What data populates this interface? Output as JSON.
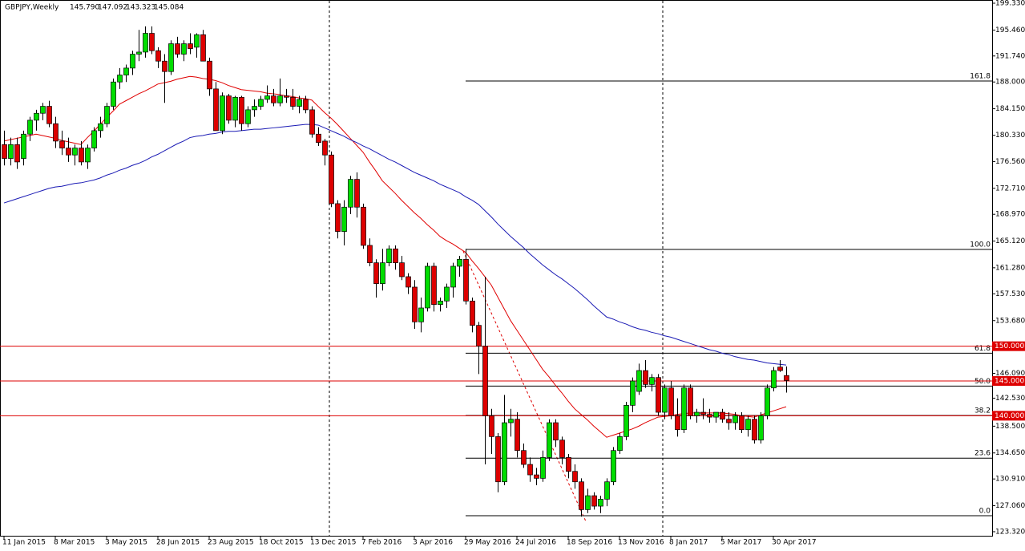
{
  "chart_data": {
    "type": "candlestick",
    "title": "GBPJPY,Weekly",
    "header_values": [
      "145.790",
      "147.092",
      "143.323",
      "145.084"
    ],
    "categories": [
      "11 Jan 2015",
      null,
      null,
      null,
      null,
      null,
      null,
      null,
      "8 Mar 2015",
      null,
      null,
      null,
      null,
      null,
      null,
      null,
      "3 May 2015",
      null,
      null,
      null,
      null,
      null,
      null,
      null,
      "28 Jun 2015",
      null,
      null,
      null,
      null,
      null,
      null,
      null,
      "23 Aug 2015",
      null,
      null,
      null,
      null,
      null,
      null,
      null,
      "18 Oct 2015",
      null,
      null,
      null,
      null,
      null,
      null,
      null,
      "13 Dec 2015",
      null,
      null,
      null,
      null,
      null,
      null,
      null,
      "7 Feb 2016",
      null,
      null,
      null,
      null,
      null,
      null,
      null,
      "3 Apr 2016",
      null,
      null,
      null,
      null,
      null,
      null,
      null,
      "29 May 2016",
      null,
      null,
      null,
      null,
      null,
      null,
      null,
      "24 Jul 2016",
      null,
      null,
      null,
      null,
      null,
      null,
      null,
      "18 Sep 2016",
      null,
      null,
      null,
      null,
      null,
      null,
      null,
      "13 Nov 2016",
      null,
      null,
      null,
      null,
      null,
      null,
      null,
      "8 Jan 2017",
      null,
      null,
      null,
      null,
      null,
      null,
      null,
      "5 Mar 2017",
      null,
      null,
      null,
      null,
      null,
      null,
      null,
      "30 Apr 2017",
      null,
      null
    ],
    "candles": {
      "up_color": "#00dd00",
      "down_color": "#dd0000",
      "values": [
        [
          179,
          181,
          176,
          177
        ],
        [
          177,
          180,
          176,
          179
        ],
        [
          179,
          180,
          175.5,
          176.5
        ],
        [
          177,
          181,
          176,
          180.5
        ],
        [
          180.5,
          183,
          179.5,
          182.5
        ],
        [
          182.5,
          184,
          181,
          183.5
        ],
        [
          183.5,
          185,
          182.5,
          184.5
        ],
        [
          184.5,
          185.3,
          181.5,
          182
        ],
        [
          182,
          183,
          178.5,
          179.5
        ],
        [
          179.5,
          181,
          177.5,
          178.5
        ],
        [
          178.5,
          180,
          176.5,
          177.5
        ],
        [
          177.5,
          179,
          176,
          178.5
        ],
        [
          178.5,
          179.5,
          176,
          176.5
        ],
        [
          176.5,
          179,
          175.5,
          178.5
        ],
        [
          178.5,
          181.5,
          178,
          181
        ],
        [
          181,
          183,
          180,
          182
        ],
        [
          182,
          185,
          181.5,
          184.5
        ],
        [
          184.5,
          188.5,
          184,
          188
        ],
        [
          188,
          190,
          187,
          189
        ],
        [
          189,
          190.5,
          188,
          190
        ],
        [
          190,
          192.5,
          189,
          192
        ],
        [
          192,
          195.5,
          191,
          192.3
        ],
        [
          192.3,
          196,
          191.5,
          195
        ],
        [
          195,
          196,
          192,
          192.5
        ],
        [
          192.5,
          193,
          190,
          191
        ],
        [
          191,
          192,
          185,
          189.5
        ],
        [
          189.5,
          194,
          189,
          193.5
        ],
        [
          193.5,
          194.5,
          191.5,
          192
        ],
        [
          192,
          194,
          191,
          193.5
        ],
        [
          193.5,
          195,
          192,
          192.8
        ],
        [
          193,
          195,
          191.5,
          194.8
        ],
        [
          194.8,
          195.5,
          191,
          191
        ],
        [
          191,
          191.5,
          186,
          187
        ],
        [
          187,
          188,
          181,
          181
        ],
        [
          181,
          186.5,
          180.5,
          186
        ],
        [
          186,
          186.3,
          182,
          182.5
        ],
        [
          182.5,
          186,
          181.5,
          185.8
        ],
        [
          185.8,
          186,
          181,
          182
        ],
        [
          182,
          184.5,
          181.5,
          184
        ],
        [
          184,
          185.5,
          183,
          184.5
        ],
        [
          184.5,
          186,
          184,
          185.5
        ],
        [
          185.5,
          187.5,
          185,
          186
        ],
        [
          186,
          187,
          184.5,
          185
        ],
        [
          185,
          188.5,
          184.5,
          186
        ],
        [
          186,
          187,
          185,
          185.8
        ],
        [
          185.8,
          187,
          184,
          184.5
        ],
        [
          184.5,
          186,
          183.5,
          185.5
        ],
        [
          185.5,
          186,
          183.5,
          184
        ],
        [
          184,
          184.5,
          180,
          180.5
        ],
        [
          180.5,
          181.5,
          178.8,
          179.3
        ],
        [
          179.5,
          179.8,
          176,
          177.5
        ],
        [
          177.5,
          178,
          170,
          170.5
        ],
        [
          170.5,
          171,
          165.5,
          166.5
        ],
        [
          166.5,
          171,
          164.5,
          170
        ],
        [
          170,
          174.5,
          169,
          174
        ],
        [
          174,
          175,
          168.5,
          170
        ],
        [
          170,
          170.5,
          164,
          164.5
        ],
        [
          164.5,
          165.5,
          161.5,
          162
        ],
        [
          162,
          162.5,
          157,
          159
        ],
        [
          159,
          164,
          158,
          162
        ],
        [
          162,
          164.5,
          161.5,
          164
        ],
        [
          164,
          164.5,
          161,
          162
        ],
        [
          162,
          163,
          159.5,
          160
        ],
        [
          160,
          160.5,
          157.5,
          158.5
        ],
        [
          158.5,
          159.5,
          152.5,
          153.5
        ],
        [
          153.5,
          157,
          152,
          155.5
        ],
        [
          155.5,
          162,
          155,
          161.5
        ],
        [
          161.5,
          162,
          155,
          156
        ],
        [
          156,
          157,
          155,
          156.5
        ],
        [
          156.5,
          159,
          155.5,
          158.5
        ],
        [
          158.5,
          162,
          157,
          161.5
        ],
        [
          161.5,
          163,
          160,
          162.5
        ],
        [
          162.5,
          164,
          156,
          156.5
        ],
        [
          156.5,
          157,
          152,
          153
        ],
        [
          153,
          153.5,
          146,
          150
        ],
        [
          150,
          160,
          133,
          140
        ],
        [
          140,
          141,
          134.5,
          137
        ],
        [
          137,
          137.5,
          129,
          130.5
        ],
        [
          130.5,
          143,
          130,
          139
        ],
        [
          139,
          141,
          137,
          139.5
        ],
        [
          139.5,
          140.5,
          134,
          135
        ],
        [
          135,
          136,
          132.5,
          133
        ],
        [
          133,
          134,
          130.5,
          131.5
        ],
        [
          131.5,
          132.5,
          130,
          131
        ],
        [
          131,
          135,
          130.5,
          134
        ],
        [
          134,
          139.5,
          133.5,
          139
        ],
        [
          139,
          139.5,
          135.5,
          136.5
        ],
        [
          136.5,
          137,
          133,
          134
        ],
        [
          134,
          134.5,
          131,
          132
        ],
        [
          132,
          133,
          129.5,
          130.5
        ],
        [
          130.5,
          131,
          125.5,
          126.5
        ],
        [
          126.5,
          129.5,
          126,
          128.5
        ],
        [
          128.5,
          129,
          126.5,
          127
        ],
        [
          127,
          128.5,
          126,
          128
        ],
        [
          128,
          131,
          127,
          130.5
        ],
        [
          130.5,
          135.5,
          130,
          135
        ],
        [
          135,
          137.5,
          134.5,
          137
        ],
        [
          137,
          142,
          136.5,
          141.5
        ],
        [
          141.5,
          145.5,
          140.5,
          145
        ],
        [
          143.5,
          147.5,
          143,
          146.5
        ],
        [
          146.5,
          148,
          144,
          144.5
        ],
        [
          144.5,
          146,
          143.5,
          145.5
        ],
        [
          145.5,
          146,
          140,
          140.5
        ],
        [
          140.5,
          144.5,
          139.5,
          144
        ],
        [
          144,
          145,
          139.5,
          140
        ],
        [
          140,
          142.5,
          137,
          138
        ],
        [
          138,
          144.5,
          137.5,
          144
        ],
        [
          144,
          144.5,
          139.5,
          140
        ],
        [
          140,
          141,
          139,
          140.5
        ],
        [
          140.5,
          142.5,
          139.5,
          140.2
        ],
        [
          140.2,
          141,
          139,
          139.8
        ],
        [
          139.8,
          140.5,
          139,
          140.5
        ],
        [
          140.5,
          141,
          139,
          139.5
        ],
        [
          139.5,
          140.5,
          138,
          139
        ],
        [
          139,
          140.5,
          138,
          140
        ],
        [
          140,
          140.5,
          137.5,
          138
        ],
        [
          138,
          140,
          137,
          139.5
        ],
        [
          139.5,
          140,
          136,
          136.5
        ],
        [
          136.5,
          140.5,
          136,
          140
        ],
        [
          140,
          144.5,
          139.5,
          144
        ],
        [
          144,
          147,
          143.5,
          146.5
        ],
        [
          147,
          148,
          146.3,
          146.5
        ],
        [
          145.79,
          147.092,
          143.323,
          145.084
        ]
      ]
    },
    "lines": [
      {
        "color": "#e00000",
        "values": [
          179.5,
          179.7,
          179.9,
          180.1,
          180.3,
          180.5,
          180.3,
          180.1,
          179.9,
          179.6,
          179.4,
          179.2,
          179.0,
          180.0,
          180.9,
          181.9,
          182.9,
          183.8,
          184.8,
          185.3,
          185.8,
          186.3,
          186.7,
          187.2,
          187.7,
          187.9,
          188.1,
          188.4,
          188.6,
          188.8,
          188.7,
          188.5,
          188.4,
          188.2,
          187.9,
          187.5,
          187.2,
          186.9,
          186.8,
          186.7,
          186.6,
          186.4,
          186.3,
          186.2,
          186.0,
          185.9,
          185.7,
          185.6,
          185.4,
          184.5,
          183.6,
          182.8,
          181.9,
          180.9,
          179.9,
          178.9,
          177.9,
          176.5,
          175.2,
          173.8,
          172.9,
          172.0,
          171.0,
          170.1,
          169.2,
          168.4,
          167.5,
          166.7,
          165.8,
          165.2,
          164.7,
          164.1,
          163.5,
          162.3,
          161.2,
          160.0,
          158.8,
          157.1,
          155.4,
          153.7,
          152.3,
          150.9,
          149.5,
          148.1,
          146.7,
          145.6,
          144.4,
          143.3,
          142.1,
          141.0,
          140.2,
          139.4,
          138.5,
          137.7,
          136.9,
          137.2,
          137.5,
          137.8,
          138.1,
          138.5,
          139.0,
          139.4,
          139.8,
          139.9,
          140.0,
          140.2,
          140.3,
          140.4,
          140.4,
          140.4,
          140.4,
          140.4,
          140.4,
          140.3,
          140.2,
          140.0,
          139.9,
          139.8,
          140.1,
          140.4,
          140.7,
          141.0,
          141.3
        ]
      },
      {
        "color": "#1a1ab4",
        "values": [
          170.6,
          170.9,
          171.2,
          171.5,
          171.8,
          172.1,
          172.4,
          172.7,
          172.9,
          173.0,
          173.2,
          173.4,
          173.5,
          173.7,
          173.9,
          174.2,
          174.6,
          174.9,
          175.3,
          175.6,
          176.0,
          176.3,
          176.7,
          177.2,
          177.6,
          178.1,
          178.6,
          179.1,
          179.5,
          180.0,
          180.2,
          180.3,
          180.5,
          180.6,
          180.8,
          180.9,
          180.9,
          181.0,
          181.1,
          181.2,
          181.2,
          181.3,
          181.4,
          181.5,
          181.6,
          181.7,
          181.8,
          181.9,
          181.9,
          181.8,
          181.4,
          181.0,
          180.6,
          180.2,
          179.7,
          179.3,
          178.8,
          178.4,
          177.9,
          177.4,
          176.9,
          176.5,
          176.0,
          175.5,
          175.0,
          174.6,
          174.2,
          173.8,
          173.3,
          172.9,
          172.5,
          172.1,
          171.5,
          171.0,
          170.4,
          169.5,
          168.6,
          167.6,
          166.7,
          165.8,
          165.0,
          164.2,
          163.3,
          162.5,
          161.7,
          161.0,
          160.3,
          159.7,
          159.0,
          158.3,
          157.5,
          156.7,
          155.8,
          155.0,
          154.2,
          153.9,
          153.5,
          153.2,
          152.8,
          152.5,
          152.3,
          152.0,
          151.8,
          151.5,
          151.3,
          151.0,
          150.7,
          150.4,
          150.1,
          149.8,
          149.5,
          149.3,
          149.0,
          148.8,
          148.5,
          148.3,
          148.1,
          148.0,
          147.8,
          147.6,
          147.5,
          147.4,
          147.3
        ]
      }
    ],
    "ylim": [
      122.74,
      199.79
    ],
    "yticks": [
      {
        "value": 123.32,
        "label": "123.320"
      },
      {
        "value": 127.06,
        "label": "127.060"
      },
      {
        "value": 130.91,
        "label": "130.910"
      },
      {
        "value": 134.65,
        "label": "134.650"
      },
      {
        "value": 138.5,
        "label": "138.500"
      },
      {
        "value": 142.53,
        "label": "142.530"
      },
      {
        "value": 146.09,
        "label": "146.090"
      },
      {
        "value": 153.68,
        "label": "153.680"
      },
      {
        "value": 157.53,
        "label": "157.530"
      },
      {
        "value": 161.28,
        "label": "161.280"
      },
      {
        "value": 165.12,
        "label": "165.120"
      },
      {
        "value": 168.97,
        "label": "168.970"
      },
      {
        "value": 172.71,
        "label": "172.710"
      },
      {
        "value": 176.56,
        "label": "176.560"
      },
      {
        "value": 180.33,
        "label": "180.330"
      },
      {
        "value": 184.15,
        "label": "184.150"
      },
      {
        "value": 188.0,
        "label": "188.000"
      },
      {
        "value": 191.74,
        "label": "191.740"
      },
      {
        "value": 195.46,
        "label": "195.460"
      },
      {
        "value": 199.33,
        "label": "199.330"
      }
    ],
    "levels": [
      {
        "value": 150,
        "label": "150.000"
      },
      {
        "value": 145,
        "label": "145.000"
      },
      {
        "value": 140,
        "label": "140.000"
      }
    ],
    "level_color": "#dd0000",
    "fib_levels": [
      {
        "value": 188.14,
        "label": "161.8"
      },
      {
        "value": 163.92,
        "label": "100.0"
      },
      {
        "value": 148.99,
        "label": "61.8"
      },
      {
        "value": 144.27,
        "label": "50.0"
      },
      {
        "value": 140.04,
        "label": "38.2"
      },
      {
        "value": 133.9,
        "label": "23.6"
      },
      {
        "value": 125.63,
        "label": "0.0"
      }
    ]
  }
}
